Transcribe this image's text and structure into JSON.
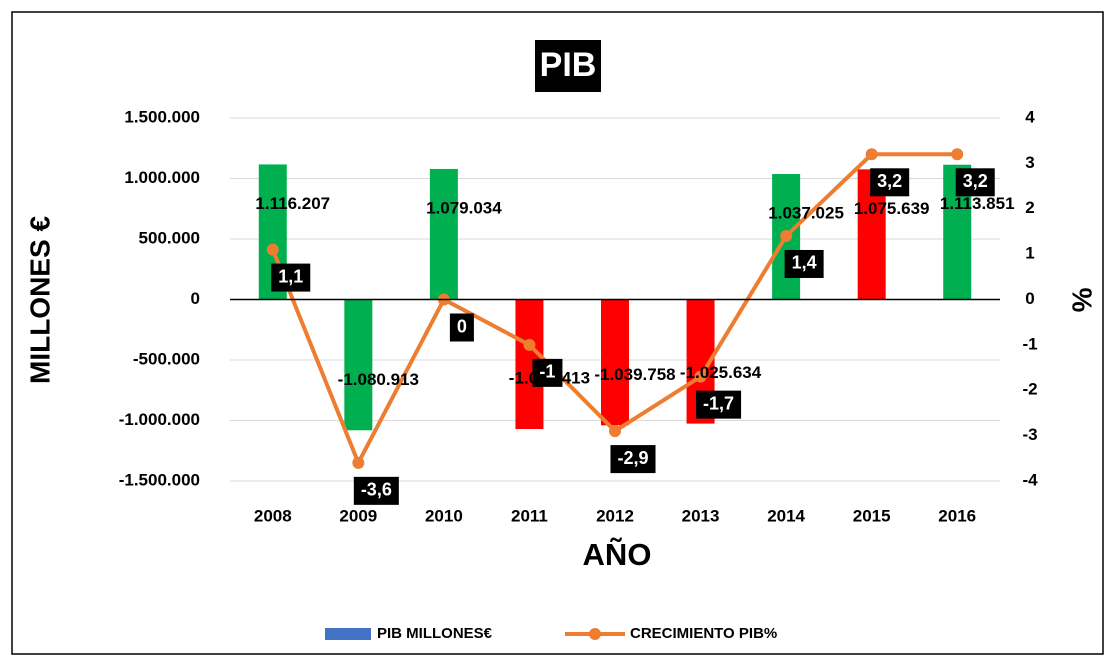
{
  "chart_data": {
    "type": "bar",
    "title": "PIB",
    "xlabel": "AÑO",
    "ylabel": "MILLONES €",
    "y2label": "%",
    "categories": [
      "2008",
      "2009",
      "2010",
      "2011",
      "2012",
      "2013",
      "2014",
      "2015",
      "2016"
    ],
    "series": [
      {
        "name": "PIB MILLONES€",
        "type": "bar",
        "color": "#4472c4",
        "colors": [
          "#00b050",
          "#00b050",
          "#00b050",
          "#ff0000",
          "#ff0000",
          "#ff0000",
          "#00b050",
          "#ff0000",
          "#00b050"
        ],
        "values": [
          1116207,
          -1080913,
          1079034,
          -1070413,
          -1039758,
          -1025634,
          1037025,
          1075639,
          1113851
        ],
        "value_labels": [
          "1.116.207",
          "-1.080.913",
          "1.079.034",
          "-1.070.413",
          "-1.039.758",
          "-1.025.634",
          "1.037.025",
          "1.075.639",
          "1.113.851"
        ]
      },
      {
        "name": "CRECIMIENTO PIB%",
        "type": "line",
        "axis": "y2",
        "color": "#ed7d31",
        "values": [
          1.1,
          -3.6,
          0,
          -1,
          -2.9,
          -1.7,
          1.4,
          3.2,
          3.2
        ],
        "value_labels": [
          "1,1",
          "-3,6",
          "0",
          "-1",
          "-2,9",
          "-1,7",
          "1,4",
          "3,2",
          "3,2"
        ]
      }
    ],
    "ylim": [
      -1500000,
      1500000
    ],
    "yticks": [
      {
        "value": -1500000,
        "label": "-1.500.000"
      },
      {
        "value": -1000000,
        "label": "-1.000.000"
      },
      {
        "value": -500000,
        "label": "-500.000"
      },
      0,
      {
        "value": 500000,
        "label": "500.000"
      },
      {
        "value": 1000000,
        "label": "1.000.000"
      },
      {
        "value": 1500000,
        "label": "1.500.000"
      }
    ],
    "y2lim": [
      -4,
      4
    ],
    "y2ticks": [
      -4,
      -3,
      -2,
      -1,
      0,
      1,
      2,
      3,
      4
    ],
    "grid": true,
    "legend": "bottom"
  }
}
